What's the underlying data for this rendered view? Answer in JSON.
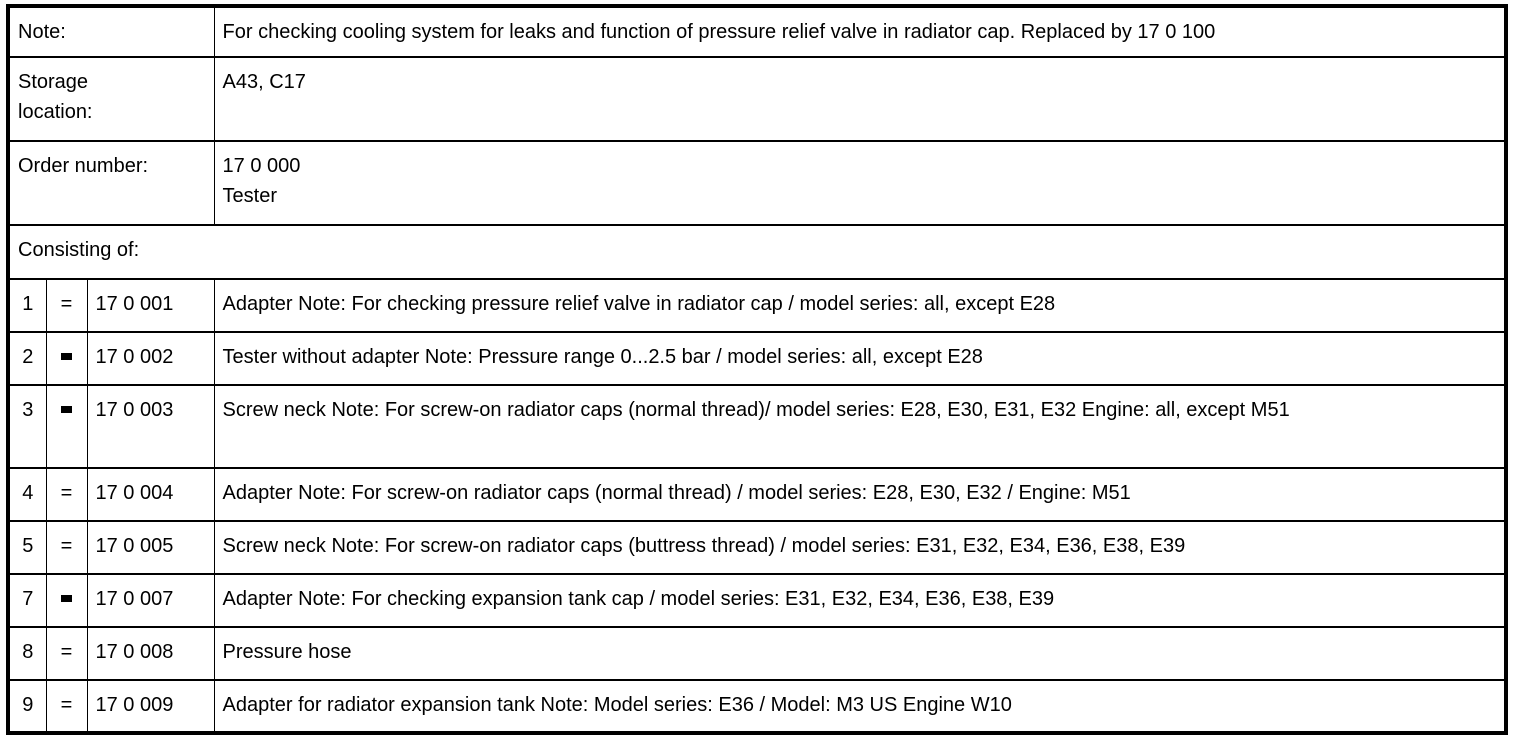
{
  "header_rows": [
    {
      "label": "Note:",
      "value": "For checking cooling system for leaks and function of pressure relief valve in radiator cap. Replaced by 17 0 100"
    },
    {
      "label": "Storage location:",
      "value": "A43, C17"
    },
    {
      "label": "Order number:",
      "value": "17 0 000",
      "value2": "Tester"
    }
  ],
  "consisting_label": "Consisting of:",
  "items": [
    {
      "pos": "1",
      "symbol": "=",
      "number": "17 0 001",
      "description": "Adapter Note: For checking pressure relief valve in radiator cap / model series: all, except E28"
    },
    {
      "pos": "2",
      "symbol": "▬",
      "number": "17 0 002",
      "description": "Tester without adapter Note: Pressure range 0...2.5 bar / model series: all, except E28"
    },
    {
      "pos": "3",
      "symbol": "▬",
      "number": "17 0 003",
      "description": "Screw neck Note: For screw-on radiator caps (normal thread)/ model series: E28, E30, E31, E32 Engine: all, except M51"
    },
    {
      "pos": "4",
      "symbol": "=",
      "number": "17 0 004",
      "description": "Adapter Note: For screw-on radiator caps (normal thread) / model series: E28, E30, E32 / Engine: M51"
    },
    {
      "pos": "5",
      "symbol": "=",
      "number": "17 0 005",
      "description": "Screw neck Note: For screw-on radiator caps (buttress thread) / model series: E31, E32, E34, E36, E38, E39"
    },
    {
      "pos": "7",
      "symbol": "▬",
      "number": "17 0 007",
      "description": "Adapter Note: For checking expansion tank cap / model series: E31, E32, E34, E36, E38, E39"
    },
    {
      "pos": "8",
      "symbol": "=",
      "number": "17 0 008",
      "description": "Pressure hose"
    },
    {
      "pos": "9",
      "symbol": "=",
      "number": "17 0 009",
      "description": "Adapter for radiator expansion tank Note: Model series: E36 / Model: M3 US Engine W10"
    }
  ]
}
